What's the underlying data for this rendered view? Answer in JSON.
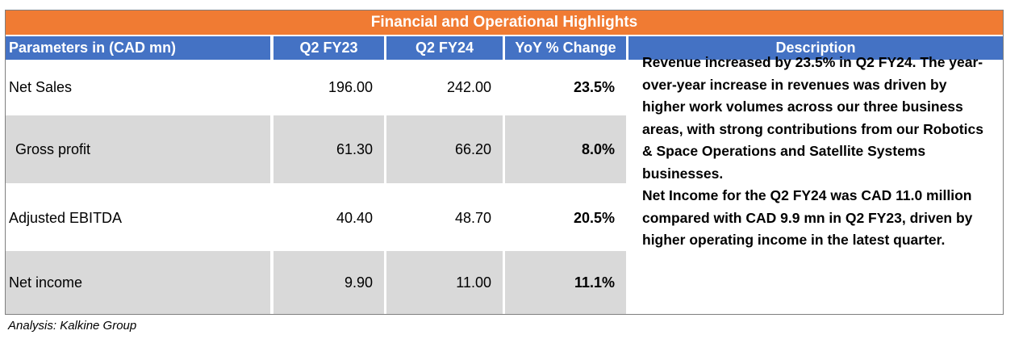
{
  "title": "Financial and Operational Highlights",
  "headers": {
    "parameters": "Parameters in (CAD mn)",
    "q2fy23": "Q2 FY23",
    "q2fy24": "Q2 FY24",
    "yoy": "YoY % Change",
    "description": "Description"
  },
  "rows": [
    {
      "label": "Net Sales",
      "q2fy23": "196.00",
      "q2fy24": "242.00",
      "yoy": "23.5%"
    },
    {
      "label": "Gross profit",
      "q2fy23": "61.30",
      "q2fy24": "66.20",
      "yoy": "8.0%"
    },
    {
      "label": "Adjusted EBITDA",
      "q2fy23": "40.40",
      "q2fy24": "48.70",
      "yoy": "20.5%"
    },
    {
      "label": "Net income",
      "q2fy23": "9.90",
      "q2fy24": "11.00",
      "yoy": "11.1%"
    }
  ],
  "description": {
    "paragraph1": "Revenue increased  by 23.5% in Q2 FY24. The year-over-year increase in revenues was driven by higher work volumes across our three business areas, with strong contributions from our Robotics & Space Operations and Satellite Systems businesses.",
    "paragraph2": "Net Income for the Q2 FY24  was CAD 11.0 million compared with CAD 9.9 mn in Q2 FY23, driven by higher operating income in the latest quarter."
  },
  "footer": "Analysis: Kalkine Group",
  "colors": {
    "title_bg": "#f07b33",
    "header_bg": "#4472c4",
    "row_shade": "#d9d9d9"
  }
}
